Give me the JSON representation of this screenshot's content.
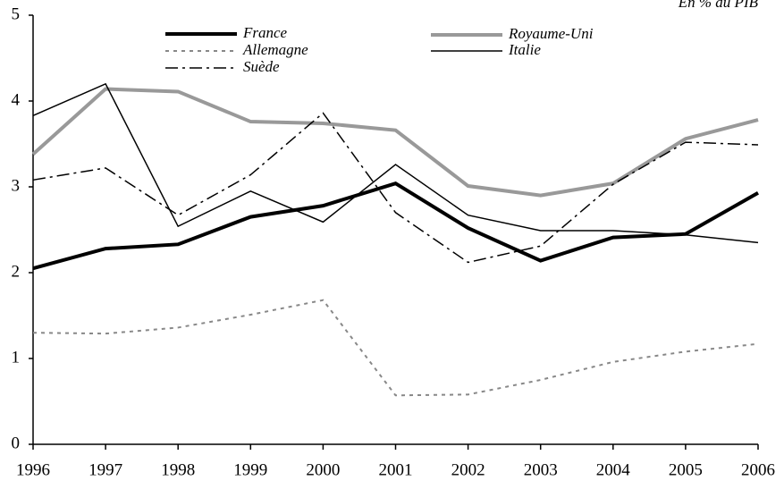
{
  "chart_data": {
    "type": "line",
    "subtitle": "En % du PIB",
    "x": [
      1996,
      1997,
      1998,
      1999,
      2000,
      2001,
      2002,
      2003,
      2004,
      2005,
      2006
    ],
    "xlim": [
      1996,
      2006
    ],
    "xticks": [
      1996,
      1997,
      1998,
      1999,
      2000,
      2001,
      2002,
      2003,
      2004,
      2005,
      2006
    ],
    "ylim": [
      0,
      5
    ],
    "yticks": [
      0,
      1,
      2,
      3,
      4,
      5
    ],
    "grid": false,
    "legend": "top",
    "series": [
      {
        "name": "France",
        "color": "#000000",
        "line_style": "solid",
        "line_width": 4,
        "values": [
          2.05,
          2.28,
          2.33,
          2.65,
          2.78,
          3.04,
          2.52,
          2.14,
          2.41,
          2.45,
          2.93
        ]
      },
      {
        "name": "Royaume-Uni",
        "color": "#999999",
        "line_style": "solid",
        "line_width": 4,
        "values": [
          3.38,
          4.14,
          4.11,
          3.76,
          3.74,
          3.66,
          3.01,
          2.9,
          3.04,
          3.56,
          3.78
        ]
      },
      {
        "name": "Allemagne",
        "color": "#888888",
        "line_style": "dotted",
        "line_width": 2,
        "values": [
          1.3,
          1.29,
          1.36,
          1.51,
          1.68,
          0.57,
          0.58,
          0.75,
          0.96,
          1.08,
          1.17
        ]
      },
      {
        "name": "Italie",
        "color": "#000000",
        "line_style": "solid",
        "line_width": 1.5,
        "values": [
          3.83,
          4.2,
          2.54,
          2.95,
          2.59,
          3.26,
          2.67,
          2.49,
          2.49,
          2.44,
          2.35
        ]
      },
      {
        "name": "Suède",
        "color": "#000000",
        "line_style": "dashdot",
        "line_width": 1.5,
        "values": [
          3.08,
          3.22,
          2.67,
          3.14,
          3.86,
          2.7,
          2.12,
          2.31,
          3.03,
          3.52,
          3.49
        ]
      }
    ]
  }
}
